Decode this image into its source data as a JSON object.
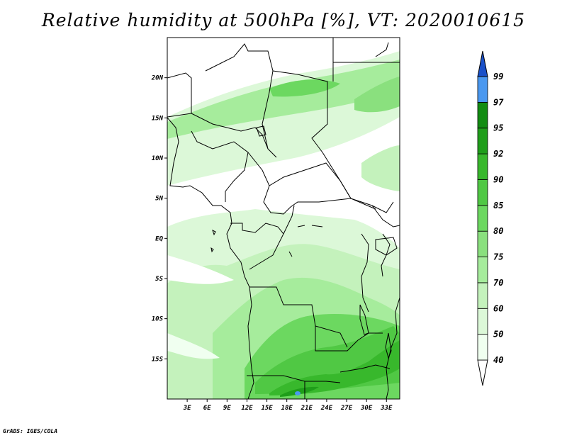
{
  "title": "Relative humidity at 500hPa [%], VT: 2020010615",
  "credit": "GrADS: IGES/COLA",
  "map": {
    "lon_range": [
      0,
      35
    ],
    "lat_range": [
      -20,
      25
    ],
    "lat_ticks": [
      {
        "value": 20,
        "label": "20N"
      },
      {
        "value": 15,
        "label": "15N"
      },
      {
        "value": 10,
        "label": "10N"
      },
      {
        "value": 5,
        "label": "5N"
      },
      {
        "value": 0,
        "label": "EQ"
      },
      {
        "value": -5,
        "label": "5S"
      },
      {
        "value": -10,
        "label": "10S"
      },
      {
        "value": -15,
        "label": "15S"
      }
    ],
    "lon_ticks": [
      {
        "value": 3,
        "label": "3E"
      },
      {
        "value": 6,
        "label": "6E"
      },
      {
        "value": 9,
        "label": "9E"
      },
      {
        "value": 12,
        "label": "12E"
      },
      {
        "value": 15,
        "label": "15E"
      },
      {
        "value": 18,
        "label": "18E"
      },
      {
        "value": 21,
        "label": "21E"
      },
      {
        "value": 24,
        "label": "24E"
      },
      {
        "value": 27,
        "label": "27E"
      },
      {
        "value": 30,
        "label": "30E"
      },
      {
        "value": 33,
        "label": "33E"
      }
    ]
  },
  "colorbar": {
    "levels": [
      {
        "label": "40",
        "color": "#f0fff0"
      },
      {
        "label": "50",
        "color": "#dcf8d8"
      },
      {
        "label": "60",
        "color": "#c4f2bc"
      },
      {
        "label": "70",
        "color": "#a6ec9c"
      },
      {
        "label": "75",
        "color": "#8ae07e"
      },
      {
        "label": "80",
        "color": "#6cd860"
      },
      {
        "label": "85",
        "color": "#50c844"
      },
      {
        "label": "90",
        "color": "#38b82c"
      },
      {
        "label": "92",
        "color": "#1f9e1a"
      },
      {
        "label": "95",
        "color": "#128c12"
      },
      {
        "label": "97",
        "color": "#4a98f0"
      },
      {
        "label": "99",
        "color": "#2a70e0"
      }
    ],
    "over_color": "#1a50c8",
    "under_color": "#ffffff"
  }
}
